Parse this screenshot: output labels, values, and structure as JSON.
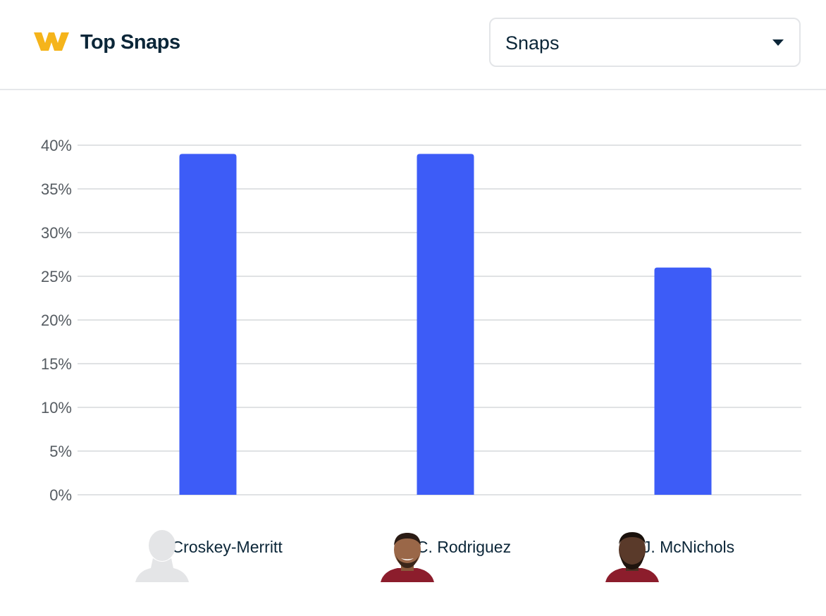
{
  "header": {
    "title": "Top Snaps",
    "brand_color": "#f5b41b",
    "select": {
      "selected": "Snaps"
    }
  },
  "colors": {
    "bar": "#3d5cf7",
    "grid": "#d6d8db",
    "tick_text": "#555b61"
  },
  "chart_data": {
    "type": "bar",
    "title": "Top Snaps",
    "categories": [
      "J. Croskey-Merritt",
      "C. Rodriguez",
      "J. McNichols"
    ],
    "values": [
      39,
      39,
      26
    ],
    "unit": "%",
    "ylim": [
      0,
      40
    ],
    "yticks": [
      0,
      5,
      10,
      15,
      20,
      25,
      30,
      35,
      40
    ],
    "ytick_labels": [
      "0%",
      "5%",
      "10%",
      "15%",
      "20%",
      "25%",
      "30%",
      "35%",
      "40%"
    ],
    "grid": true,
    "xlabel": "",
    "ylabel": ""
  },
  "players": [
    {
      "name": "J. Croskey-Merritt",
      "avatar": "placeholder-silhouette-icon"
    },
    {
      "name": "C. Rodriguez",
      "avatar": "player-headshot"
    },
    {
      "name": "J. McNichols",
      "avatar": "player-headshot"
    }
  ]
}
